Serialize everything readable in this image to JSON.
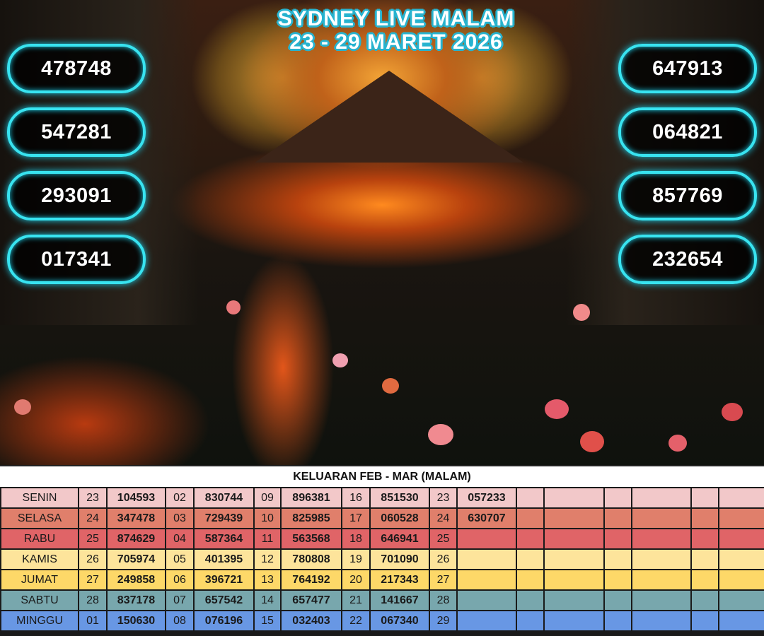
{
  "banner": {
    "title_line1": "SYDNEY LIVE MALAM",
    "title_line2": "23 - 29 MARET 2026"
  },
  "results_left": [
    "478748",
    "547281",
    "293091",
    "017341"
  ],
  "results_right": [
    "647913",
    "064821",
    "857769",
    "232654"
  ],
  "table": {
    "title": "KELUARAN FEB - MAR (MALAM)",
    "row_colors": [
      "#f2c8c9",
      "#e07f6b",
      "#e06467",
      "#fde49b",
      "#fdd868",
      "#78a7ad",
      "#6897e4"
    ],
    "rows": [
      {
        "day": "SENIN",
        "cells": [
          "23",
          "104593",
          "02",
          "830744",
          "09",
          "896381",
          "16",
          "851530",
          "23",
          "057233",
          "",
          "",
          "",
          "",
          "",
          ""
        ]
      },
      {
        "day": "SELASA",
        "cells": [
          "24",
          "347478",
          "03",
          "729439",
          "10",
          "825985",
          "17",
          "060528",
          "24",
          "630707",
          "",
          "",
          "",
          "",
          "",
          ""
        ]
      },
      {
        "day": "RABU",
        "cells": [
          "25",
          "874629",
          "04",
          "587364",
          "11",
          "563568",
          "18",
          "646941",
          "25",
          "",
          "",
          "",
          "",
          "",
          "",
          ""
        ]
      },
      {
        "day": "KAMIS",
        "cells": [
          "26",
          "705974",
          "05",
          "401395",
          "12",
          "780808",
          "19",
          "701090",
          "26",
          "",
          "",
          "",
          "",
          "",
          "",
          ""
        ]
      },
      {
        "day": "JUMAT",
        "cells": [
          "27",
          "249858",
          "06",
          "396721",
          "13",
          "764192",
          "20",
          "217343",
          "27",
          "",
          "",
          "",
          "",
          "",
          "",
          ""
        ]
      },
      {
        "day": "SABTU",
        "cells": [
          "28",
          "837178",
          "07",
          "657542",
          "14",
          "657477",
          "21",
          "141667",
          "28",
          "",
          "",
          "",
          "",
          "",
          "",
          ""
        ]
      },
      {
        "day": "MINGGU",
        "cells": [
          "01",
          "150630",
          "08",
          "076196",
          "15",
          "032403",
          "22",
          "067340",
          "29",
          "",
          "",
          "",
          "",
          "",
          "",
          ""
        ]
      }
    ]
  }
}
